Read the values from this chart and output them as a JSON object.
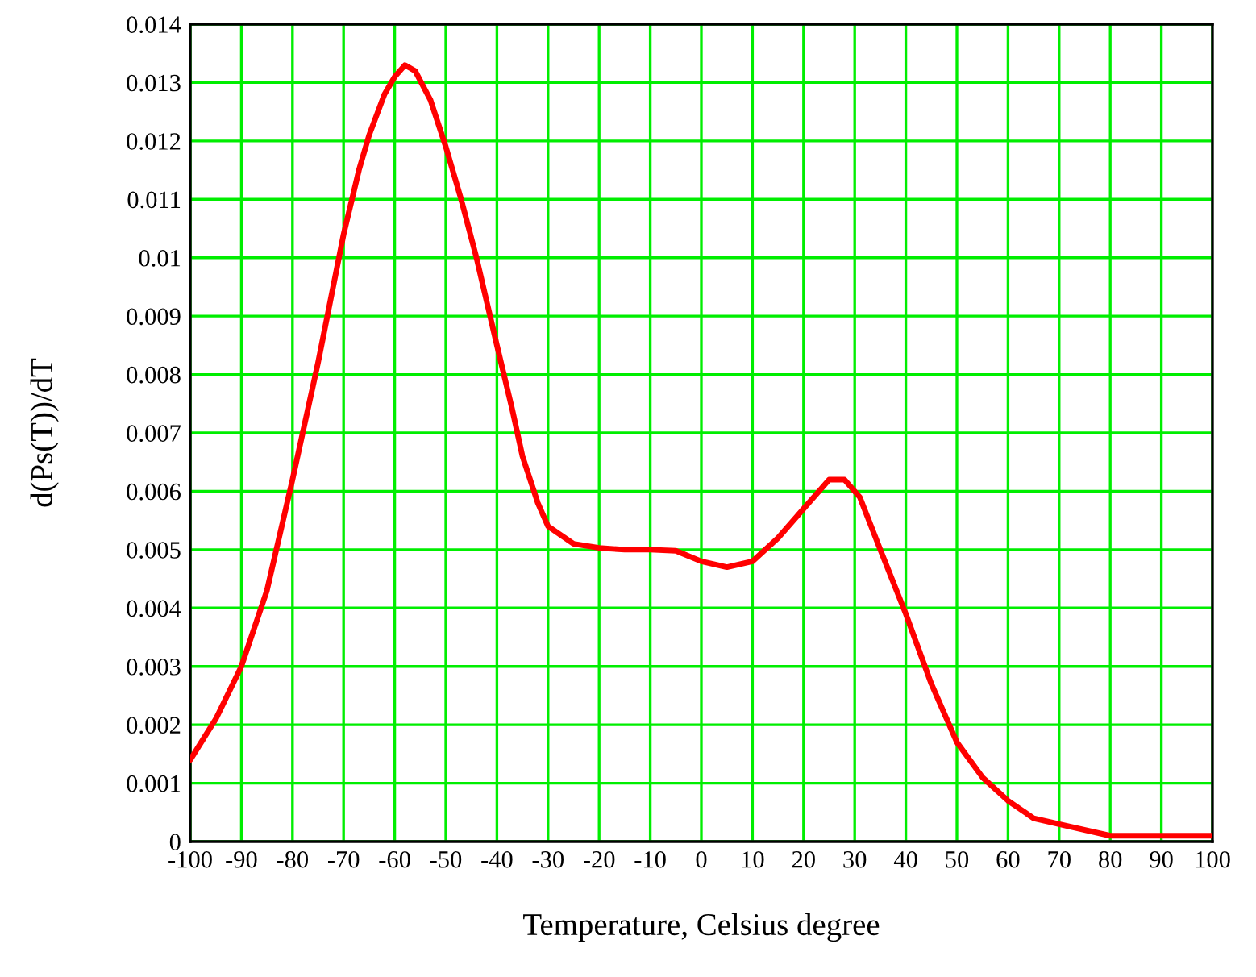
{
  "chart_data": {
    "type": "line",
    "xlabel": "Temperature, Celsius degree",
    "ylabel": "d(Ps(T))/dT",
    "x": [
      -100,
      -95,
      -90,
      -85,
      -80,
      -75,
      -70,
      -67,
      -65,
      -62,
      -60,
      -58,
      -56,
      -53,
      -50,
      -47,
      -44,
      -40,
      -37,
      -35,
      -32,
      -30,
      -25,
      -20,
      -15,
      -10,
      -5,
      0,
      5,
      10,
      15,
      20,
      25,
      28,
      31,
      35,
      40,
      45,
      50,
      55,
      60,
      65,
      70,
      80,
      90,
      100
    ],
    "series": [
      {
        "color": "#ff0000",
        "values": [
          0.0014,
          0.0021,
          0.003,
          0.0043,
          0.0062,
          0.0082,
          0.0104,
          0.0115,
          0.0121,
          0.0128,
          0.0131,
          0.0133,
          0.0132,
          0.0127,
          0.0119,
          0.011,
          0.01,
          0.0085,
          0.0074,
          0.0066,
          0.0058,
          0.0054,
          0.0051,
          0.00503,
          0.005,
          0.005,
          0.00498,
          0.0048,
          0.0047,
          0.0048,
          0.0052,
          0.0057,
          0.0062,
          0.0062,
          0.0059,
          0.005,
          0.0039,
          0.0027,
          0.0017,
          0.0011,
          0.0007,
          0.0004,
          0.0003,
          0.0001,
          0.0001,
          0.0001
        ]
      }
    ],
    "xlim": [
      -100,
      100
    ],
    "ylim": [
      0,
      0.014
    ],
    "xticks": [
      -100,
      -90,
      -80,
      -70,
      -60,
      -50,
      -40,
      -30,
      -20,
      -10,
      0,
      10,
      20,
      30,
      40,
      50,
      60,
      70,
      80,
      90,
      100
    ],
    "yticks": [
      0,
      0.001,
      0.002,
      0.003,
      0.004,
      0.005,
      0.006,
      0.007,
      0.008,
      0.009,
      0.01,
      0.011,
      0.012,
      0.013,
      0.014
    ],
    "grid": true,
    "marker": "none",
    "line_style": "solid"
  }
}
